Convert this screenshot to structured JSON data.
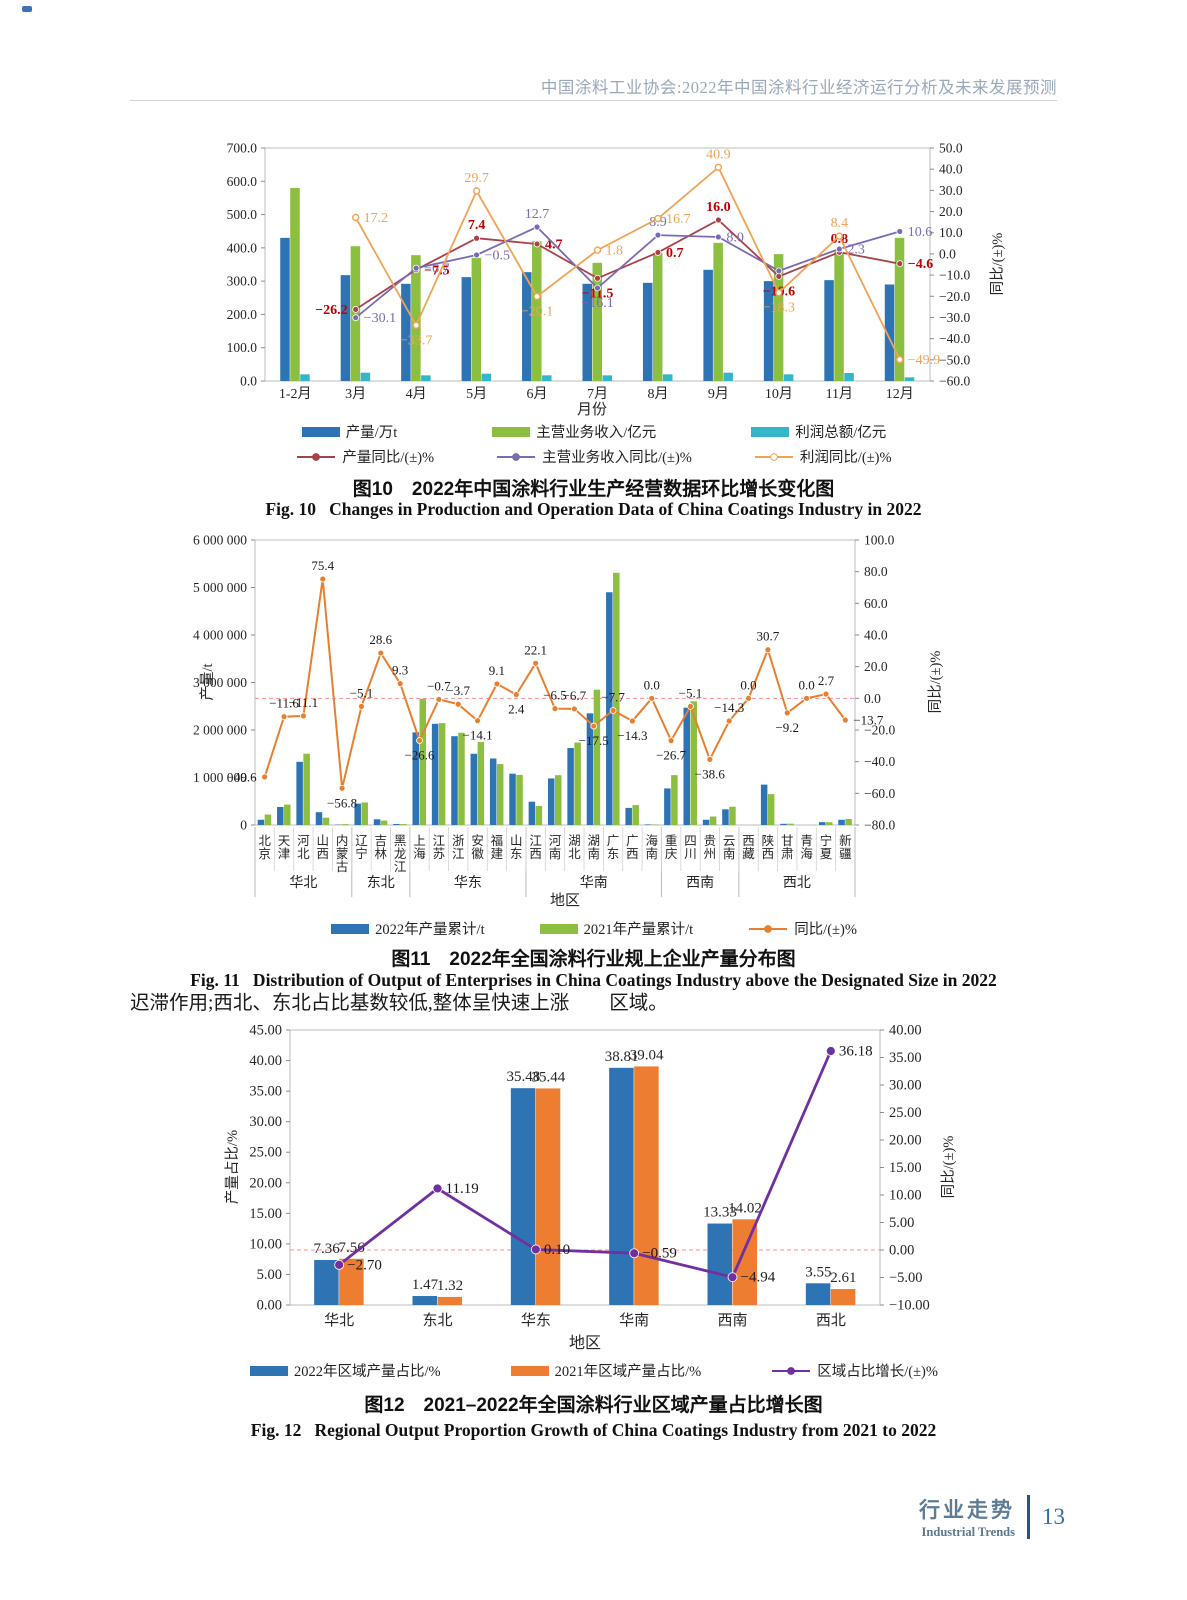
{
  "page": {
    "header": "中国涂料工业协会:2022年中国涂料行业经济运行分析及未来发展预测",
    "body_text_left": "迟滞作用;西北、东北占比基数较低,整体呈快速上涨",
    "body_text_right": "区域。",
    "footer": {
      "cn": "行业走势",
      "en": "Industrial Trends",
      "page_number": "13"
    }
  },
  "chart_data": [
    {
      "type": "bar+line",
      "title_cn": "图10　2022年中国涂料行业生产经营数据环比增长变化图",
      "title_en": "Fig. 10   Changes in Production and Operation Data of China Coatings Industry in 2022",
      "xlabel": "月份",
      "categories": [
        "1-2月",
        "3月",
        "4月",
        "5月",
        "6月",
        "7月",
        "8月",
        "9月",
        "10月",
        "11月",
        "12月"
      ],
      "left_axis": {
        "min": 0,
        "max": 700,
        "step": 100
      },
      "right_axis": {
        "min": -60,
        "max": 50,
        "step": 10,
        "title": "同比/(±)%"
      },
      "bar_series": [
        {
          "name": "产量/万t",
          "color": "#2e74b5",
          "values": [
            430,
            318,
            292,
            312,
            327,
            292,
            295,
            334,
            300,
            303,
            290
          ]
        },
        {
          "name": "主营业务收入/亿元",
          "color": "#8cbf3f",
          "values": [
            580,
            405,
            378,
            370,
            420,
            355,
            385,
            415,
            381,
            388,
            430
          ]
        },
        {
          "name": "利润总额/亿元",
          "color": "#35b5c9",
          "values": [
            20,
            25,
            17,
            22,
            17,
            17,
            20,
            25,
            20,
            24,
            11
          ]
        }
      ],
      "line_series": [
        {
          "name": "产量同比/(±)%",
          "color": "#a8424a",
          "label_color": "#c00000",
          "values": [
            null,
            -26.2,
            -7.5,
            7.4,
            4.7,
            -11.5,
            0.7,
            16.0,
            -10.6,
            0.8,
            -4.6
          ],
          "labels": [
            null,
            "-26.2",
            "-7.5",
            "7.4",
            "4.7",
            "-11.5",
            "0.7",
            "16.0",
            "-10.6",
            "0.8",
            "-4.6"
          ]
        },
        {
          "name": "主营业务收入同比/(±)%",
          "color": "#7a6ab4",
          "label_color": "#7a6ab4",
          "values": [
            null,
            -30.1,
            -6.7,
            -0.5,
            12.7,
            -16.1,
            8.9,
            8.0,
            -8.0,
            2.3,
            10.6
          ],
          "labels": [
            null,
            "-30.1",
            "-6.7",
            "-0.5",
            "12.7",
            "-16.1",
            "8.9",
            "8.0",
            null,
            "2.3",
            "10.6"
          ]
        },
        {
          "name": "利润同比/(±)%",
          "color": "#f0a355",
          "label_color": "#f0a355",
          "values": [
            null,
            17.2,
            -33.7,
            29.7,
            -20.1,
            1.8,
            16.7,
            40.9,
            -18.3,
            8.4,
            -49.9
          ],
          "labels": [
            null,
            "17.2",
            "-33.7",
            "29.7",
            "-20.1",
            "1.8",
            "16.7",
            "40.9",
            "-18.3",
            "8.4",
            "-49.9"
          ]
        }
      ]
    },
    {
      "type": "bar+line",
      "title_cn": "图11　2022年全国涂料行业规上企业产量分布图",
      "title_en": "Fig. 11   Distribution of Output of Enterprises in China Coatings Industry above the Designated Size in 2022",
      "xlabel": "地区",
      "ylabel": "产量/t",
      "categories": [
        "北京",
        "天津",
        "河北",
        "山西",
        "内蒙古",
        "辽宁",
        "吉林",
        "黑龙江",
        "上海",
        "江苏",
        "浙江",
        "安徽",
        "福建",
        "山东",
        "江西",
        "河南",
        "湖北",
        "湖南",
        "广东",
        "广西",
        "海南",
        "重庆",
        "四川",
        "贵州",
        "云南",
        "西藏",
        "陕西",
        "甘肃",
        "青海",
        "宁夏",
        "新疆"
      ],
      "groups": [
        {
          "label": "华北",
          "from": 0,
          "to": 4
        },
        {
          "label": "东北",
          "from": 5,
          "to": 7
        },
        {
          "label": "华东",
          "from": 8,
          "to": 13
        },
        {
          "label": "华南",
          "from": 14,
          "to": 20
        },
        {
          "label": "西南",
          "from": 21,
          "to": 24
        },
        {
          "label": "西北",
          "from": 25,
          "to": 30
        }
      ],
      "left_axis": {
        "min": 0,
        "max": 6000000,
        "step": 1000000
      },
      "right_axis": {
        "min": -80,
        "max": 100,
        "step": 20,
        "title": "同比/(±)%"
      },
      "bar_series": [
        {
          "name": "2022年产量累计/t",
          "color": "#2e74b5",
          "values": [
            110000,
            380000,
            1330000,
            270000,
            8000,
            450000,
            120000,
            22000,
            1950000,
            2130000,
            1870000,
            1500000,
            1400000,
            1080000,
            490000,
            980000,
            1620000,
            2350000,
            4900000,
            360000,
            12000,
            770000,
            2470000,
            110000,
            330000,
            3000,
            850000,
            25000,
            3000,
            60000,
            110000
          ]
        },
        {
          "name": "2021年产量累计/t",
          "color": "#8cbf3f",
          "values": [
            220000,
            430000,
            1500000,
            154000,
            18500,
            474000,
            93000,
            20000,
            2657000,
            2145000,
            1942000,
            1746000,
            1283000,
            1055000,
            401000,
            1048000,
            1736000,
            2849000,
            5309000,
            420000,
            12000,
            1050000,
            2603000,
            179000,
            385000,
            3000,
            650000,
            28000,
            3000,
            58000,
            127000
          ]
        }
      ],
      "line_series": [
        {
          "name": "同比/(±)%",
          "color": "#e87f2e",
          "label_color": "#1a1a1a",
          "values": [
            -49.6,
            -11.6,
            -11.1,
            75.4,
            -56.8,
            -5.1,
            28.6,
            9.3,
            -26.6,
            -0.7,
            -3.7,
            -14.1,
            9.1,
            2.4,
            22.1,
            -6.5,
            -6.7,
            -17.5,
            -7.7,
            -14.3,
            0.0,
            -26.7,
            -5.1,
            -38.6,
            -14.3,
            0.0,
            30.7,
            -9.2,
            0.0,
            2.7,
            -13.7
          ],
          "labels": [
            "-49.6",
            "-11.6",
            "-11.1",
            "75.4",
            "-56.8",
            "-5.1",
            "28.6",
            "9.3",
            "-26.6",
            "-0.7",
            "-3.7",
            "-14.1",
            "9.1",
            "2.4",
            "22.1",
            "-6.5",
            "-6.7",
            "-17.5",
            "-7.7",
            "-14.3",
            "0.0",
            "-26.7",
            "-5.1",
            "-38.6",
            "-14.3",
            "0.0",
            "30.7",
            "-9.2",
            "0.0",
            "2.7",
            "-13.7"
          ]
        }
      ]
    },
    {
      "type": "bar+line",
      "title_cn": "图12　2021–2022年全国涂料行业区域产量占比增长图",
      "title_en": "Fig. 12   Regional Output Proportion Growth of China Coatings Industry from 2021 to 2022",
      "xlabel": "地区",
      "ylabel": "产量占比/%",
      "categories": [
        "华北",
        "东北",
        "华东",
        "华南",
        "西南",
        "西北"
      ],
      "left_axis": {
        "min": 0,
        "max": 45,
        "step": 5
      },
      "right_axis": {
        "min": -10,
        "max": 40,
        "step": 5,
        "title": "同比/(±)%"
      },
      "bar_series": [
        {
          "name": "2022年区域产量占比/%",
          "color": "#2e74b5",
          "values": [
            7.36,
            1.47,
            35.48,
            38.81,
            13.33,
            3.55
          ],
          "labels": [
            "7.36",
            "1.47",
            "35.48",
            "38.81",
            "13.33",
            "3.55"
          ]
        },
        {
          "name": "2021年区域产量占比/%",
          "color": "#ed7d31",
          "values": [
            7.56,
            1.32,
            35.44,
            39.04,
            14.02,
            2.61
          ],
          "labels": [
            "7.56",
            "1.32",
            "35.44",
            "39.04",
            "14.02",
            "2.61"
          ]
        }
      ],
      "line_series": [
        {
          "name": "区域占比增长/(±)%",
          "color": "#7030a0",
          "label_color": "#1a1a1a",
          "values": [
            -2.7,
            11.19,
            0.1,
            -0.59,
            -4.94,
            36.18
          ],
          "labels": [
            "-2.70",
            "11.19",
            "0.10",
            "-0.59",
            "-4.94",
            "36.18"
          ]
        }
      ]
    }
  ]
}
